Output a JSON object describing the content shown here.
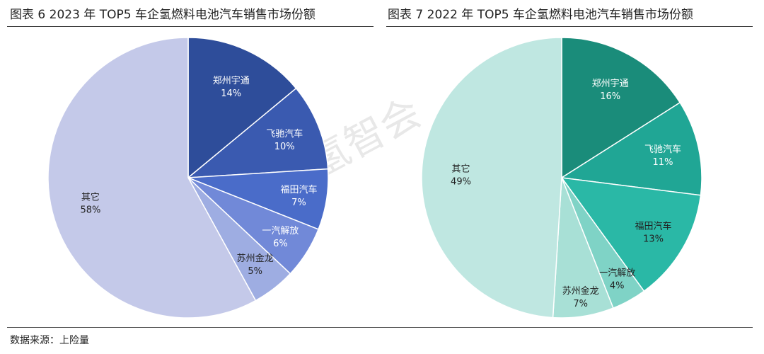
{
  "figure_left_title": "图表 6 2023 年 TOP5 车企氢燃料电池汽车销售市场份额",
  "figure_right_title": "图表 7 2022 年 TOP5 车企氢燃料电池汽车销售市场份额",
  "source": "数据来源：上险量",
  "watermark": "氢智会",
  "chart_data": [
    {
      "type": "pie",
      "title": "图表 6 2023 年 TOP5 车企氢燃料电池汽车销售市场份额",
      "unit": "%",
      "slices": [
        {
          "label": "郑州宇通",
          "value": 14,
          "display": "14%",
          "color": "#2e4d9a",
          "label_color": "#ffffff"
        },
        {
          "label": "飞驰汽车",
          "value": 10,
          "display": "10%",
          "color": "#3a5ab0",
          "label_color": "#ffffff"
        },
        {
          "label": "福田汽车",
          "value": 7,
          "display": "7%",
          "color": "#4a6cc9",
          "label_color": "#ffffff"
        },
        {
          "label": "一汽解放",
          "value": 6,
          "display": "6%",
          "color": "#7189d8",
          "label_color": "#ffffff"
        },
        {
          "label": "苏州金龙",
          "value": 5,
          "display": "5%",
          "color": "#9eade2",
          "label_color": "#222222"
        },
        {
          "label": "其它",
          "value": 58,
          "display": "58%",
          "color": "#c4c9e9",
          "label_color": "#222222"
        }
      ]
    },
    {
      "type": "pie",
      "title": "图表 7 2022 年 TOP5 车企氢燃料电池汽车销售市场份额",
      "unit": "%",
      "slices": [
        {
          "label": "郑州宇通",
          "value": 16,
          "display": "16%",
          "color": "#1a8c7a",
          "label_color": "#ffffff"
        },
        {
          "label": "飞驰汽车",
          "value": 11,
          "display": "11%",
          "color": "#20a695",
          "label_color": "#ffffff"
        },
        {
          "label": "福田汽车",
          "value": 13,
          "display": "13%",
          "color": "#2ab8a6",
          "label_color": "#222222"
        },
        {
          "label": "一汽解放",
          "value": 4,
          "display": "4%",
          "color": "#7fd3c6",
          "label_color": "#222222"
        },
        {
          "label": "苏州金龙",
          "value": 7,
          "display": "7%",
          "color": "#a8e0d6",
          "label_color": "#222222"
        },
        {
          "label": "其它",
          "value": 49,
          "display": "49%",
          "color": "#bfe7e1",
          "label_color": "#222222"
        }
      ]
    }
  ]
}
